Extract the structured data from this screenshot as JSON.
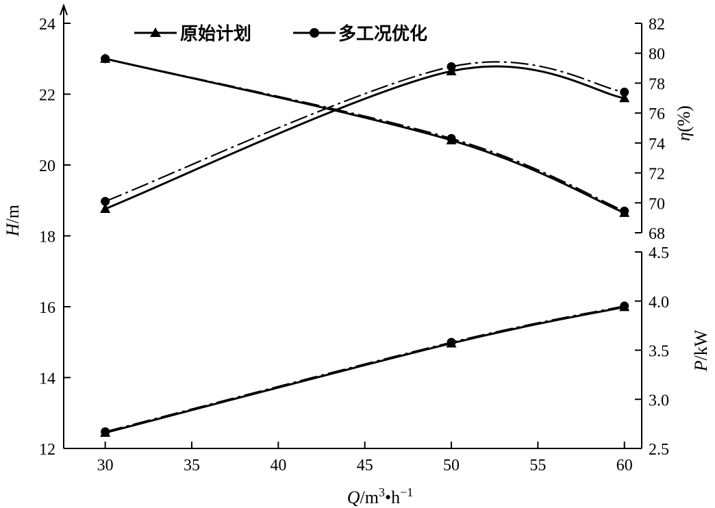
{
  "chart_data": {
    "type": "line",
    "legend": [
      {
        "name": "原始计划",
        "marker": "triangle"
      },
      {
        "name": "多工况优化",
        "marker": "circle"
      }
    ],
    "x_axis": {
      "label_parts": [
        "Q",
        "/m",
        "3",
        "•h",
        "−1"
      ],
      "ticks": [
        30,
        35,
        40,
        45,
        50,
        55,
        60
      ],
      "range": [
        27.6,
        61
      ]
    },
    "y_left": {
      "label_parts": [
        "H",
        "/m"
      ],
      "ticks": [
        12,
        14,
        16,
        18,
        20,
        22,
        24
      ],
      "range": [
        12,
        24
      ]
    },
    "y_right_eta": {
      "label_parts": [
        "η",
        "(%)"
      ],
      "ticks": [
        68,
        70,
        72,
        74,
        76,
        78,
        80,
        82
      ],
      "range": [
        68,
        82
      ]
    },
    "y_right_power": {
      "label_parts": [
        "P",
        "/kW"
      ],
      "ticks": [
        "2.5",
        "3.0",
        "3.5",
        "4.0",
        "4.5"
      ],
      "range": [
        2.5,
        4.5
      ]
    },
    "series": [
      {
        "name": "原始计划",
        "quantity": "H",
        "axis": "left",
        "marker": "triangle",
        "x": [
          30,
          50,
          60
        ],
        "y": [
          23.0,
          20.7,
          18.65
        ]
      },
      {
        "name": "多工况优化",
        "quantity": "H",
        "axis": "left",
        "marker": "circle",
        "x": [
          30,
          50,
          60
        ],
        "y": [
          23.0,
          20.75,
          18.7
        ]
      },
      {
        "name": "原始计划",
        "quantity": "η",
        "axis": "eta",
        "marker": "triangle",
        "x": [
          30,
          50,
          60
        ],
        "y": [
          69.6,
          78.8,
          77.0
        ]
      },
      {
        "name": "多工况优化",
        "quantity": "η",
        "axis": "eta",
        "marker": "circle",
        "x": [
          30,
          50,
          60
        ],
        "y": [
          70.1,
          79.1,
          77.4
        ]
      },
      {
        "name": "原始计划",
        "quantity": "P",
        "axis": "power",
        "marker": "triangle",
        "x": [
          30,
          50,
          60
        ],
        "y": [
          2.66,
          3.57,
          3.94
        ]
      },
      {
        "name": "多工况优化",
        "quantity": "P",
        "axis": "power",
        "marker": "circle",
        "x": [
          30,
          50,
          60
        ],
        "y": [
          2.67,
          3.58,
          3.95
        ]
      }
    ]
  }
}
